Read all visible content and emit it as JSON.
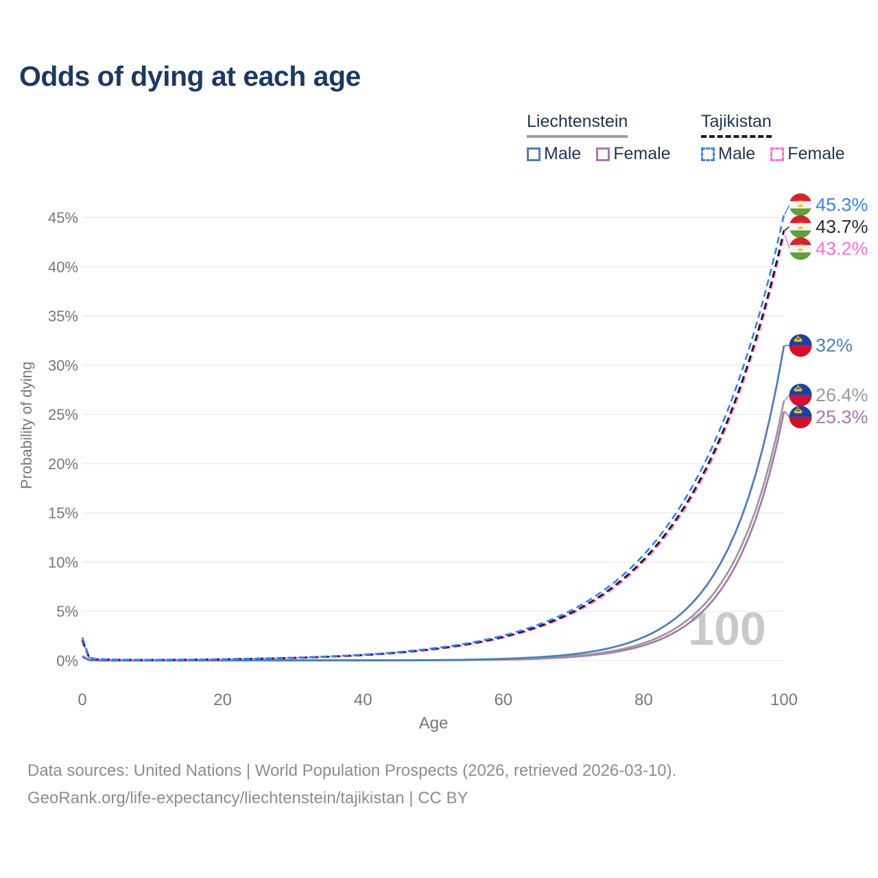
{
  "title": "Odds of dying at each age",
  "legend": {
    "groups": [
      {
        "country": "Liechtenstein",
        "line_style": "solid",
        "underline_color": "#9a9a9a",
        "items": [
          {
            "label": "Male",
            "color": "#4f7dbc",
            "dashed": false
          },
          {
            "label": "Female",
            "color": "#a976ac",
            "dashed": false
          }
        ]
      },
      {
        "country": "Tajikistan",
        "line_style": "dashed",
        "underline_color": "#1a1a1a",
        "items": [
          {
            "label": "Male",
            "color": "#3b82f6",
            "dashed": true
          },
          {
            "label": "Female",
            "color": "#fb6ed8",
            "dashed": true
          }
        ]
      }
    ]
  },
  "watermark": "100",
  "footer": {
    "line1": "Data sources: United Nations | World Population Prospects (2026, retrieved 2026-03-10).",
    "line2": "GeoRank.org/life-expectancy/liechtenstein/tajikistan | CC BY"
  },
  "chart_data": {
    "type": "line",
    "title": "Odds of dying at each age",
    "xlabel": "Age",
    "ylabel": "Probability of dying",
    "xlim": [
      0,
      100
    ],
    "ylim": [
      0,
      46.5
    ],
    "xticks": [
      0,
      20,
      40,
      60,
      80,
      100
    ],
    "yticks": [
      0,
      5,
      10,
      15,
      20,
      25,
      30,
      35,
      40,
      45
    ],
    "grid": true,
    "legend_position": "top-right",
    "x_ages": [
      0,
      1,
      2,
      5,
      10,
      15,
      20,
      25,
      30,
      35,
      40,
      45,
      50,
      55,
      60,
      65,
      70,
      75,
      80,
      85,
      90,
      95,
      100
    ],
    "series": [
      {
        "id": "tajikistan-male",
        "name": "Tajikistan Male",
        "color": "#3b82f6",
        "label_color": "#3b82f6",
        "dashed": true,
        "flag": "tajikistan",
        "end_label": "45.3%",
        "values": [
          2.35,
          0.29,
          0.16,
          0.09,
          0.08,
          0.1,
          0.14,
          0.21,
          0.29,
          0.42,
          0.6,
          0.86,
          1.24,
          1.77,
          2.54,
          3.65,
          5.22,
          7.49,
          10.73,
          15.38,
          22.05,
          31.61,
          45.3
        ]
      },
      {
        "id": "tajikistan-both",
        "name": "Tajikistan Both sexes",
        "color": "#1a1a1a",
        "label_color": "#2b2b2b",
        "dashed": true,
        "flag": "tajikistan",
        "end_label": "43.7%",
        "values": [
          2.1,
          0.25,
          0.14,
          0.08,
          0.07,
          0.09,
          0.13,
          0.19,
          0.27,
          0.39,
          0.56,
          0.81,
          1.17,
          1.68,
          2.41,
          3.46,
          4.97,
          7.14,
          10.25,
          14.73,
          21.16,
          30.42,
          43.7
        ]
      },
      {
        "id": "tajikistan-female",
        "name": "Tajikistan Female",
        "color": "#fb6ed8",
        "label_color": "#fb6ed8",
        "dashed": true,
        "flag": "tajikistan",
        "end_label": "43.2%",
        "values": [
          1.9,
          0.22,
          0.12,
          0.07,
          0.06,
          0.09,
          0.12,
          0.18,
          0.26,
          0.38,
          0.54,
          0.78,
          1.12,
          1.62,
          2.33,
          3.35,
          4.83,
          6.96,
          10.03,
          14.45,
          20.82,
          30.0,
          43.2
        ]
      },
      {
        "id": "liechtenstein-male",
        "name": "Liechtenstein Male",
        "color": "#4f7dbc",
        "label_color": "#4f7dbc",
        "dashed": false,
        "flag": "liechtenstein",
        "end_label": "32%",
        "values": [
          0.45,
          0.05,
          0.02,
          0.01,
          0.01,
          0.02,
          0.02,
          0.02,
          0.02,
          0.02,
          0.02,
          0.03,
          0.05,
          0.09,
          0.18,
          0.34,
          0.65,
          1.24,
          2.38,
          4.55,
          8.72,
          16.7,
          32.0
        ]
      },
      {
        "id": "liechtenstein-both",
        "name": "Liechtenstein Both sexes",
        "color": "#9a9a9a",
        "label_color": "#9b9b9b",
        "dashed": false,
        "flag": "liechtenstein",
        "end_label": "26.4%",
        "values": [
          0.4,
          0.04,
          0.02,
          0.01,
          0.01,
          0.01,
          0.02,
          0.02,
          0.02,
          0.02,
          0.02,
          0.02,
          0.03,
          0.06,
          0.12,
          0.24,
          0.46,
          0.9,
          1.77,
          3.48,
          6.84,
          13.43,
          26.4
        ]
      },
      {
        "id": "liechtenstein-female",
        "name": "Liechtenstein Female",
        "color": "#a976ac",
        "label_color": "#a976ac",
        "dashed": false,
        "flag": "liechtenstein",
        "end_label": "25.3%",
        "values": [
          0.35,
          0.04,
          0.02,
          0.01,
          0.01,
          0.01,
          0.01,
          0.02,
          0.02,
          0.02,
          0.02,
          0.02,
          0.02,
          0.05,
          0.09,
          0.19,
          0.38,
          0.76,
          1.54,
          3.1,
          6.24,
          12.56,
          25.3
        ]
      }
    ],
    "flag_colors": {
      "tajikistan": {
        "red": "#d8222e",
        "white": "#f4f4f4",
        "green": "#5ea03c",
        "gold": "#f0c435"
      },
      "liechtenstein": {
        "blue": "#19419f",
        "red": "#d30f2f",
        "gold": "#e8ba16"
      }
    }
  }
}
